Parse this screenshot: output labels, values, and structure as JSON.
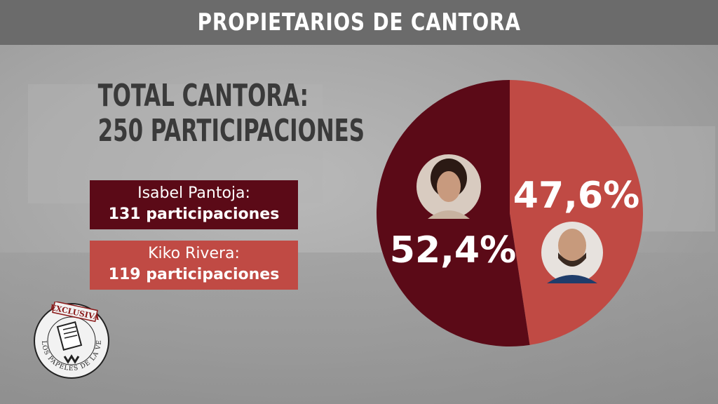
{
  "header": {
    "title": "PROPIETARIOS DE CANTORA"
  },
  "total": {
    "line1": "TOTAL CANTORA:",
    "line2": "250 PARTICIPACIONES"
  },
  "legend": [
    {
      "name": "Isabel Pantoja:",
      "count": "131 participaciones",
      "color": "#5b0a17"
    },
    {
      "name": "Kiko Rivera:",
      "count": "119 participaciones",
      "color": "#c04a44"
    }
  ],
  "stamp": {
    "top_text": "EXCLUSIVA",
    "ring_text": "LOS PAPELES DE LA VERDAD"
  },
  "chart_data": {
    "type": "pie",
    "title": "TOTAL CANTORA: 250 PARTICIPACIONES",
    "slices": [
      {
        "label": "Isabel Pantoja",
        "value": 52.4,
        "display": "52,4%",
        "color": "#5b0a17"
      },
      {
        "label": "Kiko Rivera",
        "value": 47.6,
        "display": "47,6%",
        "color": "#c04a44"
      }
    ]
  }
}
